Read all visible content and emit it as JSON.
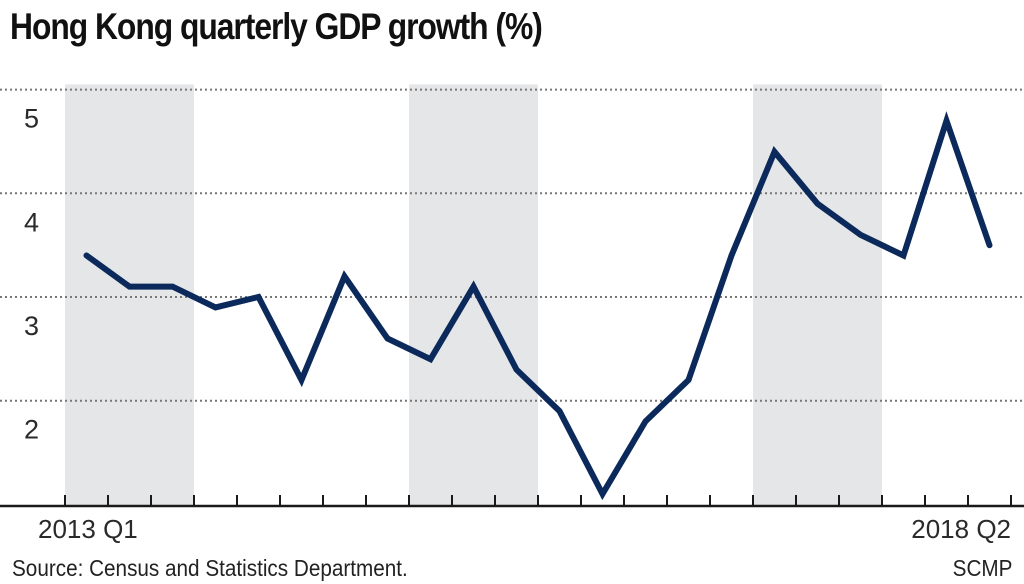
{
  "chart_data": {
    "type": "line",
    "title": "Hong Kong quarterly GDP growth (%)",
    "xlabel": "",
    "ylabel": "",
    "x": [
      "2013 Q1",
      "2013 Q2",
      "2013 Q3",
      "2013 Q4",
      "2014 Q1",
      "2014 Q2",
      "2014 Q3",
      "2014 Q4",
      "2015 Q1",
      "2015 Q2",
      "2015 Q3",
      "2015 Q4",
      "2016 Q1",
      "2016 Q2",
      "2016 Q3",
      "2016 Q4",
      "2017 Q1",
      "2017 Q2",
      "2017 Q3",
      "2017 Q4",
      "2018 Q1",
      "2018 Q2"
    ],
    "series": [
      {
        "name": "GDP growth (%)",
        "values": [
          3.4,
          3.1,
          3.1,
          2.9,
          3.0,
          2.2,
          3.2,
          2.6,
          2.4,
          3.1,
          2.3,
          1.9,
          1.1,
          1.8,
          2.2,
          3.4,
          4.4,
          3.9,
          3.6,
          3.4,
          4.7,
          3.5
        ]
      }
    ],
    "ylim": [
      1,
      5.05
    ],
    "yticks": [
      2,
      3,
      4,
      5
    ],
    "ytick_labels": [
      "2",
      "3",
      "4",
      "5"
    ],
    "xtick_labels_shown": {
      "first": "2013 Q1",
      "last": "2018 Q2"
    },
    "grid": "horizontal dotted",
    "shaded_bands_years": [
      "2013",
      "2015",
      "2017"
    ],
    "colors": {
      "line": "#0b2a5b",
      "band": "#e5e6e8",
      "grid": "#777777",
      "axis": "#1a1a1a"
    }
  },
  "footer": {
    "source": "Source: Census and Statistics Department.",
    "credit": "SCMP"
  }
}
